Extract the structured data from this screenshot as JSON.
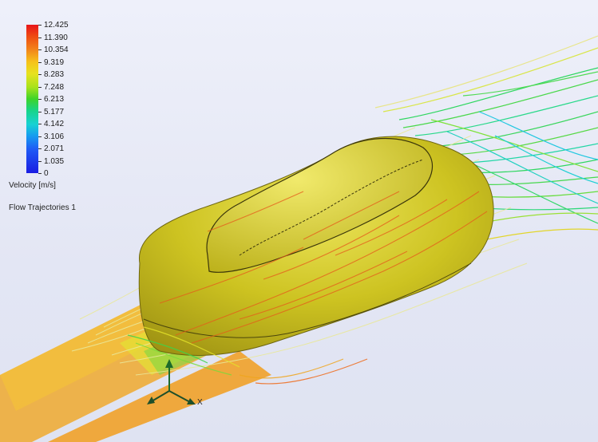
{
  "legend": {
    "ticks": [
      "12.425",
      "11.390",
      "10.354",
      "9.319",
      "8.283",
      "7.248",
      "6.213",
      "5.177",
      "4.142",
      "3.106",
      "2.071",
      "1.035",
      "0"
    ],
    "quantity_label": "Velocity [m/s]",
    "plot_name": "Flow Trajectories 1"
  },
  "triad": {
    "x_label": "X"
  },
  "colors": {
    "background": "#e6e9f6",
    "car_body": "#c9c21a",
    "flow_max": "#e8141a",
    "flow_min": "#1a1de2"
  },
  "icons": {
    "axis_triad": "axis-triad-icon"
  }
}
